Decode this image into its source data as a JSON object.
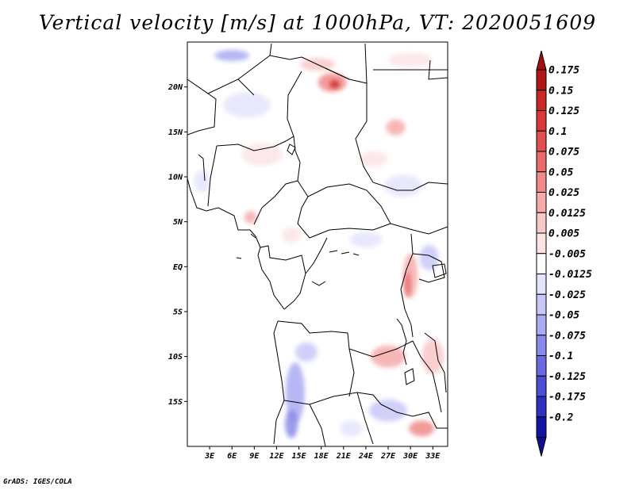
{
  "title": "Vertical velocity [m/s] at 1000hPa, VT: 2020051609",
  "footer": "GrADS: IGES/COLA",
  "map": {
    "lon_range": [
      0,
      35
    ],
    "lat_range": [
      -20,
      25
    ],
    "lat_ticks": [
      {
        "value": 20,
        "label": "20N"
      },
      {
        "value": 15,
        "label": "15N"
      },
      {
        "value": 10,
        "label": "10N"
      },
      {
        "value": 5,
        "label": "5N"
      },
      {
        "value": 0,
        "label": "EQ"
      },
      {
        "value": -5,
        "label": "5S"
      },
      {
        "value": -10,
        "label": "10S"
      },
      {
        "value": -15,
        "label": "15S"
      }
    ],
    "lon_ticks": [
      {
        "value": 3,
        "label": "3E"
      },
      {
        "value": 6,
        "label": "6E"
      },
      {
        "value": 9,
        "label": "9E"
      },
      {
        "value": 12,
        "label": "12E"
      },
      {
        "value": 15,
        "label": "15E"
      },
      {
        "value": 18,
        "label": "18E"
      },
      {
        "value": 21,
        "label": "21E"
      },
      {
        "value": 24,
        "label": "24E"
      },
      {
        "value": 27,
        "label": "27E"
      },
      {
        "value": 30,
        "label": "30E"
      },
      {
        "value": 33,
        "label": "33E"
      }
    ]
  },
  "colorbar": {
    "labels": [
      "0.175",
      "0.15",
      "0.125",
      "0.1",
      "0.075",
      "0.05",
      "0.025",
      "0.0125",
      "0.005",
      "-0.005",
      "-0.0125",
      "-0.025",
      "-0.05",
      "-0.075",
      "-0.1",
      "-0.125",
      "-0.175",
      "-0.2"
    ],
    "colors": [
      "#b01818",
      "#c82828",
      "#d83838",
      "#e05050",
      "#e86a6a",
      "#f08a8a",
      "#f5aaaa",
      "#f9c8c8",
      "#fce4e4",
      "#ffffff",
      "#e4e4fc",
      "#c8c8f8",
      "#aaaaf2",
      "#8a8aea",
      "#6a6ae0",
      "#4c4cd4",
      "#3030c0",
      "#1414a4"
    ],
    "top_arrow_color": "#a01010",
    "bottom_arrow_color": "#10108c"
  },
  "patches": [
    {
      "lon": 19.5,
      "lat": 20.5,
      "rx": 18,
      "ry": 12,
      "color": "#f08a8a"
    },
    {
      "lon": 19.8,
      "lat": 20.3,
      "rx": 6,
      "ry": 5,
      "color": "#c82828"
    },
    {
      "lon": 17.5,
      "lat": 22.5,
      "rx": 22,
      "ry": 8,
      "color": "#f9c8c8"
    },
    {
      "lon": 6.0,
      "lat": 23.5,
      "rx": 22,
      "ry": 7,
      "color": "#aaaaf2"
    },
    {
      "lon": 28.0,
      "lat": 15.5,
      "rx": 12,
      "ry": 10,
      "color": "#f5aaaa"
    },
    {
      "lon": 30.0,
      "lat": 23.0,
      "rx": 28,
      "ry": 9,
      "color": "#fce4e4"
    },
    {
      "lon": 8.0,
      "lat": 18.0,
      "rx": 30,
      "ry": 16,
      "color": "#e4e4fc"
    },
    {
      "lon": 10.0,
      "lat": 12.5,
      "rx": 26,
      "ry": 14,
      "color": "#fce4e4"
    },
    {
      "lon": 29.0,
      "lat": 9.0,
      "rx": 24,
      "ry": 14,
      "color": "#e4e4fc"
    },
    {
      "lon": 25.0,
      "lat": 12.0,
      "rx": 18,
      "ry": 10,
      "color": "#fce4e4"
    },
    {
      "lon": 30.0,
      "lat": -1.0,
      "rx": 9,
      "ry": 28,
      "color": "#f5aaaa"
    },
    {
      "lon": 29.6,
      "lat": -2.0,
      "rx": 4,
      "ry": 16,
      "color": "#e86a6a"
    },
    {
      "lon": 32.5,
      "lat": 1.0,
      "rx": 12,
      "ry": 16,
      "color": "#c8c8f8"
    },
    {
      "lon": 33.0,
      "lat": -10.0,
      "rx": 14,
      "ry": 22,
      "color": "#f9c8c8"
    },
    {
      "lon": 27.0,
      "lat": -10.0,
      "rx": 22,
      "ry": 14,
      "color": "#f5aaaa"
    },
    {
      "lon": 14.5,
      "lat": -14.0,
      "rx": 12,
      "ry": 38,
      "color": "#aaaaf2"
    },
    {
      "lon": 14.0,
      "lat": -17.5,
      "rx": 8,
      "ry": 18,
      "color": "#8a8aea"
    },
    {
      "lon": 16.0,
      "lat": -9.5,
      "rx": 14,
      "ry": 12,
      "color": "#c8c8f8"
    },
    {
      "lon": 27.0,
      "lat": -16.0,
      "rx": 24,
      "ry": 14,
      "color": "#c8c8f8"
    },
    {
      "lon": 31.5,
      "lat": -18.0,
      "rx": 16,
      "ry": 10,
      "color": "#f08a8a"
    },
    {
      "lon": 22.0,
      "lat": -18.0,
      "rx": 14,
      "ry": 10,
      "color": "#e4e4fc"
    },
    {
      "lon": 8.5,
      "lat": 5.5,
      "rx": 8,
      "ry": 8,
      "color": "#f5aaaa"
    },
    {
      "lon": 14.0,
      "lat": 3.5,
      "rx": 12,
      "ry": 10,
      "color": "#fce4e4"
    },
    {
      "lon": 24.0,
      "lat": 3.0,
      "rx": 20,
      "ry": 10,
      "color": "#e4e4fc"
    },
    {
      "lon": 2.0,
      "lat": 9.5,
      "rx": 10,
      "ry": 14,
      "color": "#e4e4fc"
    }
  ]
}
